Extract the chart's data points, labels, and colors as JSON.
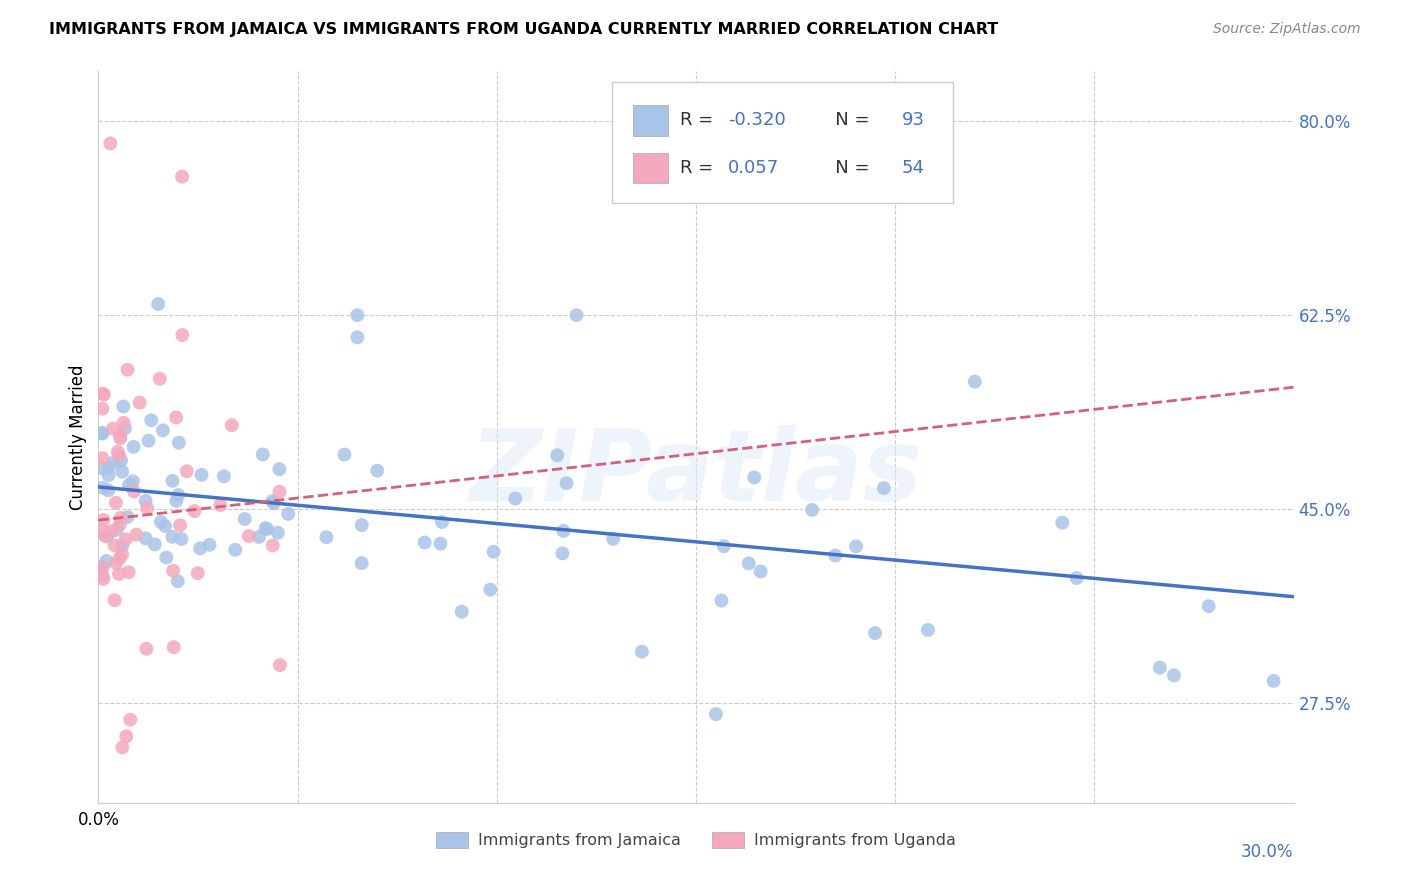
{
  "title": "IMMIGRANTS FROM JAMAICA VS IMMIGRANTS FROM UGANDA CURRENTLY MARRIED CORRELATION CHART",
  "source": "Source: ZipAtlas.com",
  "ylabel": "Currently Married",
  "xlim": [
    0.0,
    0.3
  ],
  "ylim": [
    0.185,
    0.845
  ],
  "y_ticks": [
    0.275,
    0.45,
    0.625,
    0.8
  ],
  "y_tick_labels": [
    "27.5%",
    "45.0%",
    "62.5%",
    "80.0%"
  ],
  "jamaica_color": "#a8c4e8",
  "uganda_color": "#f4a8bb",
  "jamaica_line_color": "#4472c4",
  "uganda_line_color": "#d4607a",
  "R_jamaica": -0.32,
  "N_jamaica": 93,
  "R_uganda": 0.057,
  "N_uganda": 54,
  "legend_text_color": "#4472c4",
  "legend_label_color": "#222222",
  "watermark": "ZIPatlas",
  "grid_color": "#cccccc",
  "title_fontsize": 11.5,
  "source_fontsize": 10,
  "tick_label_fontsize": 12,
  "legend_fontsize": 13
}
